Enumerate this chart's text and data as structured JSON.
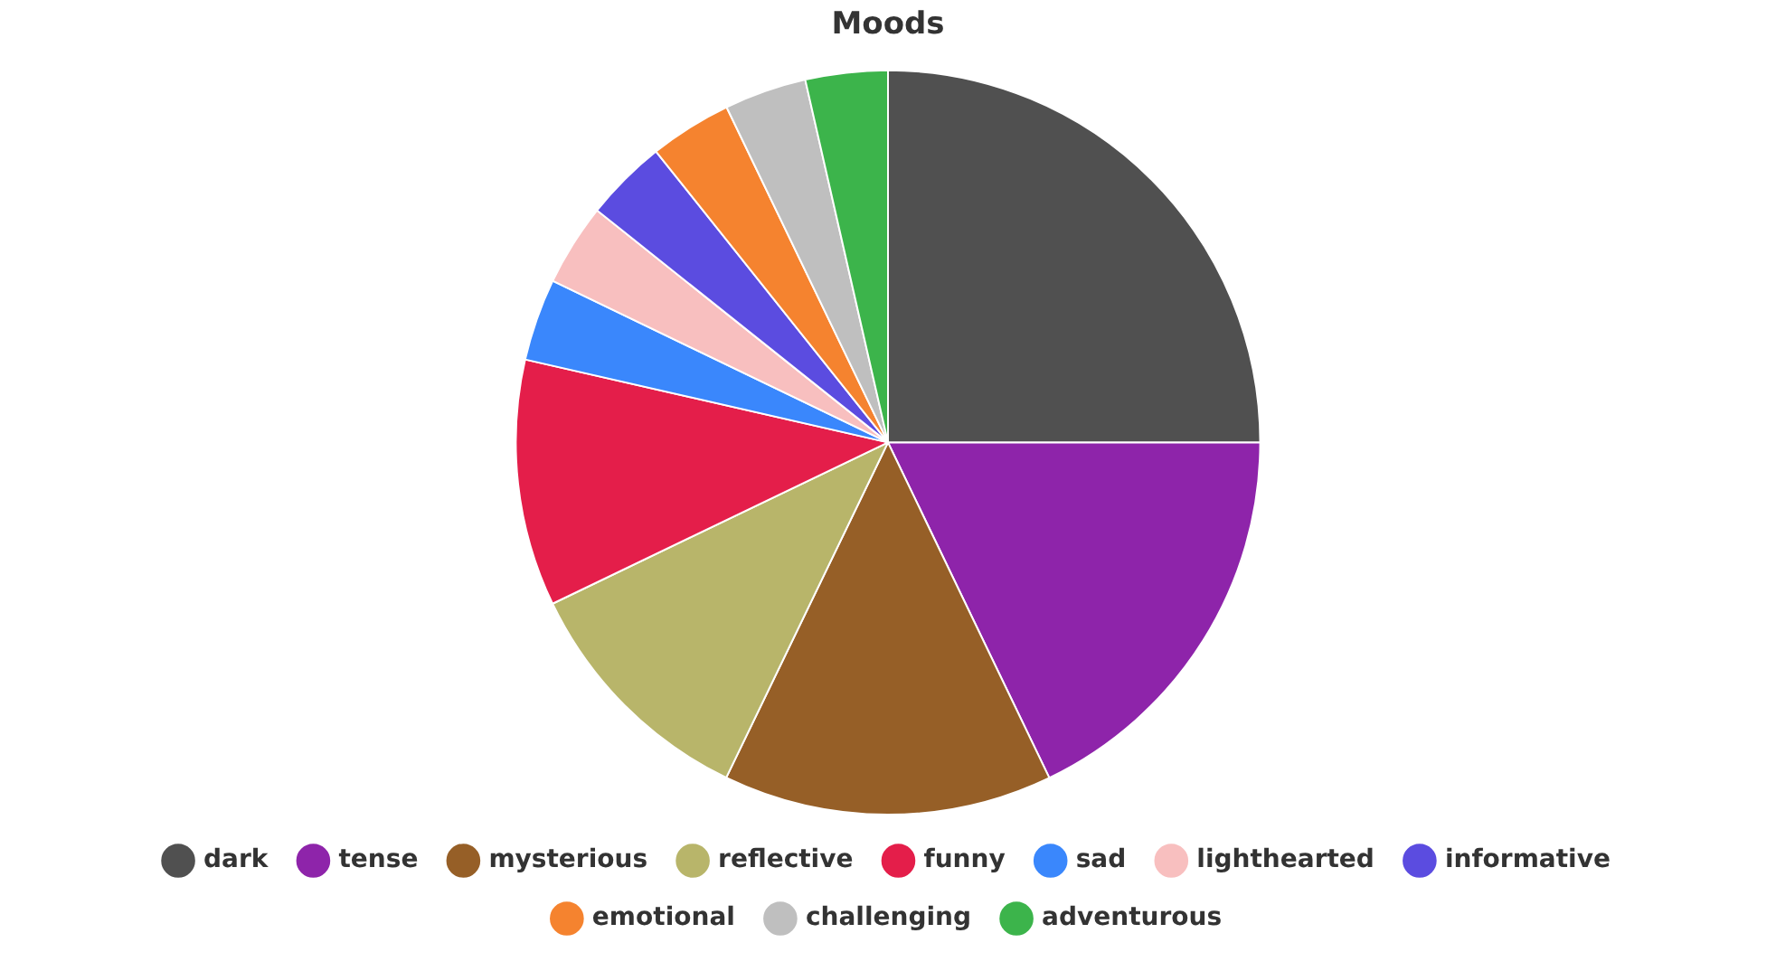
{
  "chart_data": {
    "type": "pie",
    "title": "Moods",
    "categories": [
      "dark",
      "tense",
      "mysterious",
      "reflective",
      "funny",
      "sad",
      "lighthearted",
      "informative",
      "emotional",
      "challenging",
      "adventurous"
    ],
    "values": [
      25,
      17.86,
      14.29,
      10.71,
      10.71,
      3.57,
      3.57,
      3.57,
      3.57,
      3.57,
      3.57
    ],
    "colors": [
      "#505050",
      "#8e24aa",
      "#965f27",
      "#b8b56a",
      "#e41e4a",
      "#3a87fc",
      "#f8bfbf",
      "#5b4ce0",
      "#f5832f",
      "#bfbfbf",
      "#3cb44b"
    ],
    "legend": "bottom"
  }
}
